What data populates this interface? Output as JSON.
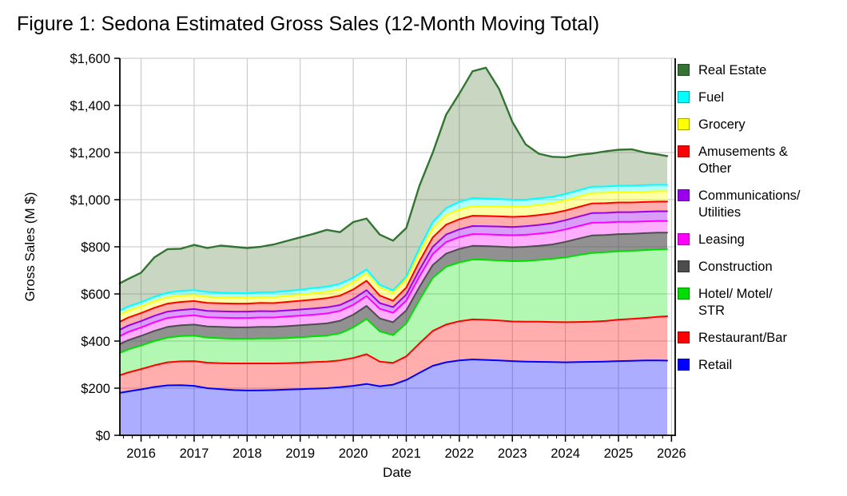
{
  "figure": {
    "title": "Figure 1: Sedona Estimated Gross Sales (12-Month Moving Total)"
  },
  "chart_data": {
    "type": "area",
    "stacked": true,
    "title": "Figure 1: Sedona Estimated Gross Sales (12-Month Moving Total)",
    "xlabel": "Date",
    "ylabel": "Gross Sales (M $)",
    "xlim": [
      2015.6,
      2026.07
    ],
    "ylim": [
      0,
      1600
    ],
    "grid": true,
    "legend_position": "right",
    "x_ticks": [
      2016,
      2017,
      2018,
      2019,
      2020,
      2021,
      2022,
      2023,
      2024,
      2025,
      2026
    ],
    "x_tick_labels": [
      "2016",
      "2017",
      "2018",
      "2019",
      "2020",
      "2021",
      "2022",
      "2023",
      "2024",
      "2025",
      "2026"
    ],
    "y_ticks": [
      0,
      200,
      400,
      600,
      800,
      1000,
      1200,
      1400,
      1600
    ],
    "y_tick_labels": [
      "$0",
      "$200",
      "$400",
      "$600",
      "$800",
      "$1,000",
      "$1,200",
      "$1,400",
      "$1,600"
    ],
    "x": [
      2015.6,
      2015.75,
      2016,
      2016.25,
      2016.5,
      2016.75,
      2017,
      2017.25,
      2017.5,
      2017.75,
      2018,
      2018.25,
      2018.5,
      2018.75,
      2019,
      2019.25,
      2019.5,
      2019.75,
      2020,
      2020.25,
      2020.5,
      2020.75,
      2021,
      2021.25,
      2021.5,
      2021.75,
      2022,
      2022.25,
      2022.5,
      2022.75,
      2023,
      2023.25,
      2023.5,
      2023.75,
      2024,
      2024.25,
      2024.5,
      2024.75,
      2025,
      2025.25,
      2025.5,
      2025.75,
      2025.92
    ],
    "series": [
      {
        "name": "Retail",
        "legend_lines": [
          "Retail"
        ],
        "line_color": "#0000FF",
        "fill_color": "rgba(0,0,255,0.32)",
        "values": [
          180,
          186,
          195,
          205,
          212,
          213,
          210,
          200,
          196,
          192,
          190,
          191,
          192,
          194,
          196,
          198,
          200,
          204,
          210,
          218,
          208,
          215,
          235,
          265,
          295,
          310,
          318,
          322,
          320,
          318,
          315,
          313,
          312,
          311,
          310,
          311,
          312,
          313,
          315,
          316,
          318,
          318,
          317
        ]
      },
      {
        "name": "Restaurant/Bar",
        "legend_lines": [
          "Restaurant/Bar"
        ],
        "line_color": "#FF0000",
        "fill_color": "rgba(255,0,0,0.32)",
        "values": [
          75,
          80,
          86,
          92,
          98,
          101,
          105,
          108,
          110,
          113,
          115,
          114,
          113,
          112,
          112,
          113,
          113,
          114,
          118,
          126,
          105,
          92,
          100,
          125,
          148,
          160,
          166,
          170,
          170,
          169,
          168,
          169,
          170,
          170,
          170,
          170,
          170,
          172,
          176,
          178,
          180,
          185,
          188
        ]
      },
      {
        "name": "Hotel/ Motel/ STR",
        "legend_lines": [
          "Hotel/ Motel/",
          "STR"
        ],
        "line_color": "#00DD00",
        "fill_color": "rgba(0,230,0,0.30)",
        "values": [
          95,
          98,
          100,
          103,
          105,
          107,
          108,
          107,
          106,
          105,
          105,
          106,
          106,
          107,
          108,
          109,
          110,
          115,
          130,
          150,
          128,
          118,
          140,
          185,
          225,
          245,
          250,
          254,
          255,
          255,
          256,
          258,
          262,
          268,
          275,
          284,
          292,
          292,
          290,
          289,
          288,
          286,
          285
        ]
      },
      {
        "name": "Construction",
        "legend_lines": [
          "Construction"
        ],
        "line_color": "#4D4D4D",
        "fill_color": "rgba(77,77,77,0.62)",
        "values": [
          37,
          39,
          41,
          43,
          45,
          46,
          47,
          47,
          48,
          48,
          48,
          49,
          49,
          50,
          51,
          51,
          52,
          53,
          54,
          55,
          55,
          55,
          55,
          55,
          55,
          56,
          57,
          58,
          58,
          59,
          59,
          60,
          60,
          61,
          66,
          70,
          74,
          73,
          73,
          72,
          72,
          71,
          70
        ]
      },
      {
        "name": "Leasing",
        "legend_lines": [
          "Leasing"
        ],
        "line_color": "#FF00FF",
        "fill_color": "rgba(255,0,255,0.32)",
        "values": [
          34,
          35,
          36,
          37,
          38,
          38,
          39,
          39,
          39,
          40,
          40,
          40,
          40,
          41,
          41,
          41,
          42,
          42,
          42,
          42,
          41,
          40,
          42,
          45,
          47,
          49,
          50,
          50,
          50,
          50,
          51,
          51,
          52,
          52,
          53,
          53,
          54,
          53,
          52,
          51,
          50,
          50,
          50
        ]
      },
      {
        "name": "Communications/ Utilities",
        "legend_lines": [
          "Communications/",
          "Utilities"
        ],
        "line_color": "#9900EE",
        "fill_color": "rgba(153,0,238,0.38)",
        "values": [
          27,
          27,
          27,
          27,
          27,
          27,
          27,
          27,
          27,
          27,
          27,
          27,
          26,
          26,
          26,
          26,
          26,
          25,
          25,
          25,
          24,
          24,
          25,
          28,
          30,
          32,
          33,
          34,
          34,
          35,
          35,
          36,
          37,
          38,
          39,
          40,
          41,
          41,
          41,
          41,
          41,
          41,
          41
        ]
      },
      {
        "name": "Amusements & Other",
        "legend_lines": [
          "Amusements &",
          "Other"
        ],
        "line_color": "#FF0000",
        "fill_color": "rgba(255,0,0,0.32)",
        "values": [
          34,
          34,
          34,
          34,
          34,
          34,
          34,
          34,
          34,
          34,
          34,
          35,
          35,
          36,
          37,
          38,
          39,
          40,
          40,
          40,
          32,
          27,
          30,
          36,
          40,
          42,
          43,
          44,
          44,
          43,
          43,
          42,
          42,
          42,
          41,
          41,
          41,
          41,
          41,
          41,
          41,
          41,
          41
        ]
      },
      {
        "name": "Grocery",
        "legend_lines": [
          "Grocery"
        ],
        "line_color": "#FFFF00",
        "fill_color": "rgba(255,255,0,0.35)",
        "values": [
          30,
          29,
          28,
          28,
          27,
          27,
          26,
          26,
          25,
          25,
          24,
          25,
          25,
          26,
          26,
          27,
          27,
          28,
          30,
          32,
          34,
          34,
          35,
          37,
          39,
          40,
          41,
          41,
          41,
          42,
          42,
          42,
          43,
          43,
          43,
          44,
          44,
          44,
          44,
          44,
          44,
          44,
          44
        ]
      },
      {
        "name": "Fuel",
        "legend_lines": [
          "Fuel"
        ],
        "line_color": "#00FFFF",
        "fill_color": "rgba(0,255,255,0.30)",
        "values": [
          17,
          18,
          18,
          19,
          19,
          20,
          20,
          20,
          20,
          20,
          20,
          20,
          21,
          21,
          21,
          22,
          22,
          22,
          20,
          16,
          12,
          10,
          12,
          20,
          26,
          30,
          33,
          34,
          33,
          32,
          31,
          29,
          28,
          27,
          27,
          27,
          27,
          27,
          27,
          28,
          28,
          27,
          27
        ]
      },
      {
        "name": "Real Estate",
        "legend_lines": [
          "Real Estate"
        ],
        "line_color": "#337433",
        "fill_color": "rgba(85,128,64,0.32)",
        "values": [
          116,
          117,
          125,
          167,
          185,
          179,
          192,
          187,
          200,
          196,
          192,
          193,
          203,
          212,
          222,
          230,
          241,
          219,
          236,
          216,
          213,
          211,
          206,
          264,
          295,
          396,
          459,
          538,
          555,
          467,
          330,
          235,
          189,
          170,
          156,
          150,
          141,
          149,
          153,
          154,
          138,
          129,
          122
        ]
      }
    ]
  }
}
